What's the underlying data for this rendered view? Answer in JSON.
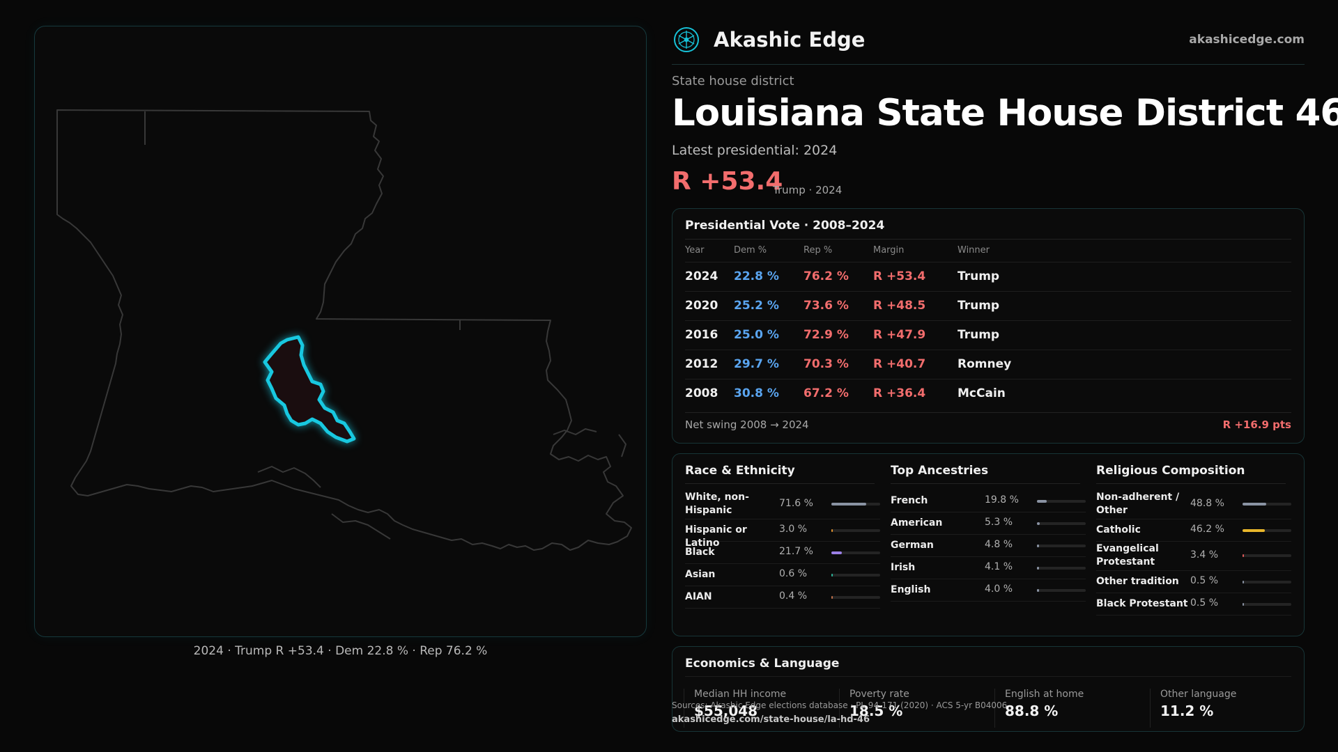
{
  "brand": {
    "name": "Akashic Edge",
    "site": "akashicedge.com",
    "logo_icon": "akashic-edge-logo-icon"
  },
  "header": {
    "kicker": "State house district",
    "title": "Louisiana State House District 46",
    "latest_label": "Latest presidential: 2024",
    "margin": "R +53.4",
    "margin_sub": "Trump · 2024"
  },
  "map": {
    "caption": "2024 · Trump R +53.4 · Dem 22.8 % · Rep 76.2 %",
    "highlight_color": "#18c8e0",
    "outline_color": "#3a3a3a"
  },
  "presidential": {
    "title": "Presidential Vote · 2008–2024",
    "columns": [
      "Year",
      "Dem %",
      "Rep %",
      "Margin",
      "Winner"
    ],
    "rows": [
      {
        "year": "2024",
        "dem": "22.8 %",
        "rep": "76.2 %",
        "margin": "R +53.4",
        "winner": "Trump"
      },
      {
        "year": "2020",
        "dem": "25.2 %",
        "rep": "73.6 %",
        "margin": "R +48.5",
        "winner": "Trump"
      },
      {
        "year": "2016",
        "dem": "25.0 %",
        "rep": "72.9 %",
        "margin": "R +47.9",
        "winner": "Trump"
      },
      {
        "year": "2012",
        "dem": "29.7 %",
        "rep": "70.3 %",
        "margin": "R +40.7",
        "winner": "Romney"
      },
      {
        "year": "2008",
        "dem": "30.8 %",
        "rep": "67.2 %",
        "margin": "R +36.4",
        "winner": "McCain"
      }
    ],
    "swing_label": "Net swing 2008 → 2024",
    "swing_value": "R +16.9 pts",
    "dem_color": "#5aa5f0",
    "rep_color": "#f26d6d"
  },
  "race": {
    "title": "Race & Ethnicity",
    "rows": [
      {
        "label": "White, non-Hispanic",
        "value": "71.6 %",
        "pct": 71.6,
        "color": "#8a93a3"
      },
      {
        "label": "Hispanic or Latino",
        "value": "3.0 %",
        "pct": 3.0,
        "color": "#e0922f"
      },
      {
        "label": "Black",
        "value": "21.7 %",
        "pct": 21.7,
        "color": "#9b7fe6"
      },
      {
        "label": "Asian",
        "value": "0.6 %",
        "pct": 0.6,
        "color": "#2bb59a"
      },
      {
        "label": "AIAN",
        "value": "0.4 %",
        "pct": 0.4,
        "color": "#c0704a"
      }
    ]
  },
  "ancestry": {
    "title": "Top Ancestries",
    "rows": [
      {
        "label": "French",
        "value": "19.8 %",
        "pct": 19.8,
        "color": "#8a93a3"
      },
      {
        "label": "American",
        "value": "5.3 %",
        "pct": 5.3,
        "color": "#8a93a3"
      },
      {
        "label": "German",
        "value": "4.8 %",
        "pct": 4.8,
        "color": "#8a93a3"
      },
      {
        "label": "Irish",
        "value": "4.1 %",
        "pct": 4.1,
        "color": "#8a93a3"
      },
      {
        "label": "English",
        "value": "4.0 %",
        "pct": 4.0,
        "color": "#8a93a3"
      }
    ]
  },
  "religion": {
    "title": "Religious Composition",
    "rows": [
      {
        "label": "Non-adherent / Other",
        "value": "48.8 %",
        "pct": 48.8,
        "color": "#8a93a3"
      },
      {
        "label": "Catholic",
        "value": "46.2 %",
        "pct": 46.2,
        "color": "#e8b62b"
      },
      {
        "label": "Evangelical Protestant",
        "value": "3.4 %",
        "pct": 3.4,
        "color": "#e05a5a"
      },
      {
        "label": "Other tradition",
        "value": "0.5 %",
        "pct": 0.5,
        "color": "#8a93a3"
      },
      {
        "label": "Black Protestant",
        "value": "0.5 %",
        "pct": 0.5,
        "color": "#8a93a3"
      }
    ]
  },
  "economics": {
    "title": "Economics & Language",
    "stats": [
      {
        "label": "Median HH income",
        "value": "$55,048"
      },
      {
        "label": "Poverty rate",
        "value": "18.5 %"
      },
      {
        "label": "English at home",
        "value": "88.8 %"
      },
      {
        "label": "Other language",
        "value": "11.2 %"
      }
    ]
  },
  "footer": {
    "source": "Sources: Akashic Edge elections database · PL 94-171 (2020) · ACS 5-yr B04006",
    "url": "akashicedge.com/state-house/la-hd-46"
  }
}
